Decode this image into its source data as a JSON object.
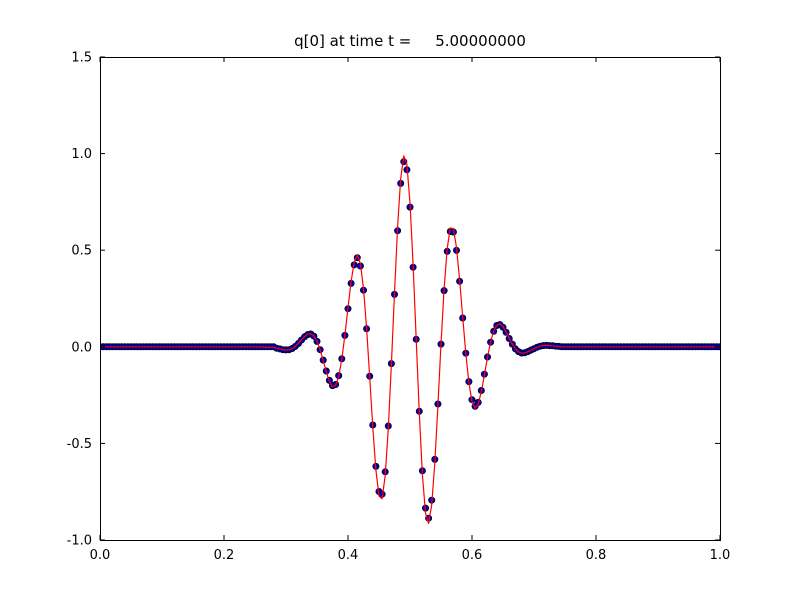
{
  "chart_data": {
    "type": "line",
    "title": "q[0] at time t =     5.00000000",
    "xlabel": "",
    "ylabel": "",
    "xlim": [
      0.0,
      1.0
    ],
    "ylim": [
      -1.0,
      1.5
    ],
    "grid": false,
    "legend": null,
    "xticks": [
      0.0,
      0.2,
      0.4,
      0.6,
      0.8,
      1.0
    ],
    "xtick_labels": [
      "0.0",
      "0.2",
      "0.4",
      "0.6",
      "0.8",
      "1.0"
    ],
    "yticks": [
      -1.0,
      -0.5,
      0.0,
      0.5,
      1.0,
      1.5
    ],
    "ytick_labels": [
      "-1.0",
      "-0.5",
      "0.0",
      "0.5",
      "1.0",
      "1.5"
    ],
    "series": [
      {
        "name": "exact-solution-line",
        "type": "line",
        "color": "#ff0000",
        "x": [
          0.0,
          0.1,
          0.2,
          0.25,
          0.28,
          0.285,
          0.29,
          0.295,
          0.3,
          0.305,
          0.31,
          0.315,
          0.32,
          0.325,
          0.33,
          0.335,
          0.34,
          0.345,
          0.35,
          0.355,
          0.36,
          0.365,
          0.37,
          0.375,
          0.38,
          0.385,
          0.39,
          0.395,
          0.4,
          0.405,
          0.41,
          0.415,
          0.42,
          0.425,
          0.43,
          0.435,
          0.44,
          0.445,
          0.45,
          0.455,
          0.46,
          0.465,
          0.47,
          0.475,
          0.48,
          0.485,
          0.49,
          0.495,
          0.5,
          0.505,
          0.51,
          0.515,
          0.52,
          0.525,
          0.53,
          0.535,
          0.54,
          0.545,
          0.55,
          0.555,
          0.56,
          0.565,
          0.57,
          0.575,
          0.58,
          0.585,
          0.59,
          0.595,
          0.6,
          0.605,
          0.61,
          0.615,
          0.62,
          0.625,
          0.63,
          0.635,
          0.64,
          0.645,
          0.65,
          0.655,
          0.66,
          0.665,
          0.67,
          0.675,
          0.68,
          0.685,
          0.69,
          0.695,
          0.7,
          0.705,
          0.71,
          0.715,
          0.72,
          0.725,
          0.73,
          0.735,
          0.74,
          0.745,
          0.75,
          0.8,
          0.9,
          1.0
        ],
        "y": [
          0,
          0,
          0,
          0,
          -0.003,
          -0.007,
          -0.011,
          -0.015,
          -0.017,
          -0.015,
          -0.009,
          0.002,
          0.018,
          0.036,
          0.053,
          0.065,
          0.068,
          0.057,
          0.029,
          -0.015,
          -0.071,
          -0.129,
          -0.179,
          -0.207,
          -0.201,
          -0.154,
          -0.064,
          0.061,
          0.203,
          0.338,
          0.437,
          0.475,
          0.431,
          0.302,
          0.096,
          -0.157,
          -0.418,
          -0.638,
          -0.772,
          -0.787,
          -0.667,
          -0.423,
          -0.09,
          0.279,
          0.62,
          0.872,
          0.988,
          0.944,
          0.745,
          0.425,
          0.04,
          -0.344,
          -0.662,
          -0.861,
          -0.914,
          -0.819,
          -0.601,
          -0.305,
          0.014,
          0.3,
          0.509,
          0.615,
          0.612,
          0.514,
          0.349,
          0.154,
          -0.034,
          -0.186,
          -0.283,
          -0.318,
          -0.297,
          -0.233,
          -0.146,
          -0.055,
          0.025,
          0.082,
          0.113,
          0.119,
          0.104,
          0.077,
          0.044,
          0.014,
          -0.011,
          -0.026,
          -0.033,
          -0.032,
          -0.026,
          -0.018,
          -0.01,
          -0.002,
          0.003,
          0.006,
          0.007,
          0.006,
          0.005,
          0.003,
          0.002,
          0.0,
          0,
          0,
          0,
          0
        ]
      },
      {
        "name": "numerical-solution-dots",
        "type": "scatter",
        "marker": "circle",
        "color": "#0000b4",
        "edge_color": "#000000",
        "x_start": 0.0,
        "x_step": 0.005,
        "y": [
          0,
          0,
          0,
          0,
          0,
          0,
          0,
          0,
          0,
          0,
          0,
          0,
          0,
          0,
          0,
          0,
          0,
          0,
          0,
          0,
          0,
          0,
          0,
          0,
          0,
          0,
          0,
          0,
          0,
          0,
          0,
          0,
          0,
          0,
          0,
          0,
          0,
          0,
          0,
          0,
          0,
          0,
          0,
          0,
          0,
          0,
          0,
          0,
          0,
          0,
          0,
          0,
          0,
          0,
          0,
          0,
          0,
          -0.007,
          -0.011,
          -0.015,
          -0.016,
          -0.015,
          -0.009,
          0.002,
          0.017,
          0.035,
          0.052,
          0.063,
          0.066,
          0.055,
          0.028,
          -0.015,
          -0.069,
          -0.125,
          -0.174,
          -0.201,
          -0.195,
          -0.149,
          -0.062,
          0.059,
          0.197,
          0.328,
          0.424,
          0.461,
          0.418,
          0.293,
          0.093,
          -0.152,
          -0.405,
          -0.619,
          -0.749,
          -0.763,
          -0.647,
          -0.41,
          -0.087,
          0.271,
          0.601,
          0.846,
          0.958,
          0.916,
          0.723,
          0.412,
          0.039,
          -0.334,
          -0.642,
          -0.835,
          -0.887,
          -0.794,
          -0.583,
          -0.296,
          0.014,
          0.291,
          0.494,
          0.597,
          0.594,
          0.499,
          0.339,
          0.149,
          -0.033,
          -0.18,
          -0.274,
          -0.308,
          -0.288,
          -0.226,
          -0.142,
          -0.053,
          0.024,
          0.08,
          0.11,
          0.115,
          0.101,
          0.075,
          0.043,
          0.014,
          -0.011,
          -0.025,
          -0.032,
          -0.031,
          -0.025,
          -0.017,
          -0.01,
          -0.002,
          0.003,
          0.006,
          0.007,
          0.006,
          0.005,
          0.003,
          0.002,
          0,
          0,
          0,
          0,
          0,
          0,
          0,
          0,
          0,
          0,
          0,
          0,
          0,
          0,
          0,
          0,
          0,
          0,
          0,
          0,
          0,
          0,
          0,
          0,
          0,
          0,
          0,
          0,
          0,
          0,
          0,
          0,
          0,
          0,
          0,
          0,
          0,
          0,
          0,
          0,
          0,
          0,
          0,
          0,
          0,
          0,
          0,
          0,
          0,
          0,
          0,
          0
        ]
      }
    ],
    "frame_color": "#000000",
    "background_color": "#ffffff"
  }
}
